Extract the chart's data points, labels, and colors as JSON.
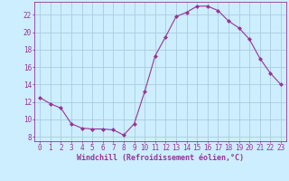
{
  "x": [
    0,
    1,
    2,
    3,
    4,
    5,
    6,
    7,
    8,
    9,
    10,
    11,
    12,
    13,
    14,
    15,
    16,
    17,
    18,
    19,
    20,
    21,
    22,
    23
  ],
  "y": [
    12.5,
    11.8,
    11.3,
    9.5,
    9.0,
    8.9,
    8.9,
    8.8,
    8.2,
    9.5,
    13.2,
    17.3,
    19.5,
    21.8,
    22.3,
    23.0,
    23.0,
    22.5,
    21.3,
    20.5,
    19.2,
    17.0,
    15.3,
    14.0
  ],
  "line_color": "#993399",
  "marker": "D",
  "marker_size": 2.0,
  "bg_color": "#cceeff",
  "grid_color": "#aaccdd",
  "xlabel": "Windchill (Refroidissement éolien,°C)",
  "ylim": [
    7.5,
    23.5
  ],
  "xlim": [
    -0.5,
    23.5
  ],
  "yticks": [
    8,
    10,
    12,
    14,
    16,
    18,
    20,
    22
  ],
  "xticks": [
    0,
    1,
    2,
    3,
    4,
    5,
    6,
    7,
    8,
    9,
    10,
    11,
    12,
    13,
    14,
    15,
    16,
    17,
    18,
    19,
    20,
    21,
    22,
    23
  ],
  "tick_color": "#993399",
  "label_fontsize": 6.0,
  "tick_fontsize": 5.5,
  "linewidth": 0.8
}
